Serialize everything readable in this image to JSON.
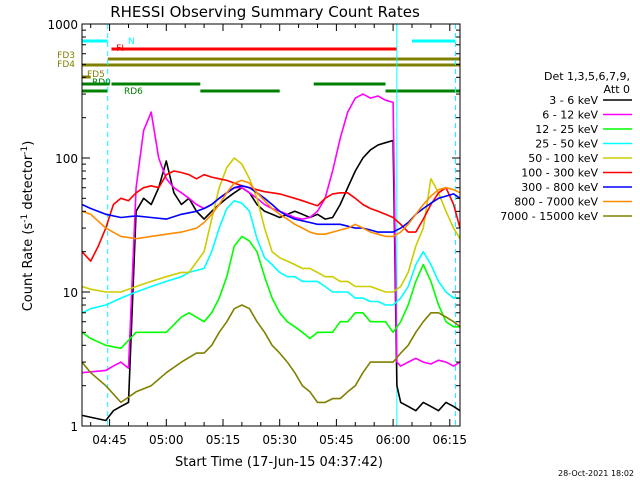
{
  "chart_data": {
    "type": "line",
    "title": "RHESSI Observing Summary Count Rates",
    "xlabel": "Start Time (17-Jun-15 04:37:42)",
    "ylabel": "Count Rate (s⁻¹ detector⁻¹)",
    "ylabel_main": "Count Rate (s",
    "ylabel_sup1": "-1",
    "ylabel_mid": " detector",
    "ylabel_sup2": "-1",
    "ylabel_end": ")",
    "footer": "28-Oct-2021 18:02",
    "y_scale": "log",
    "ylim": [
      1,
      1000
    ],
    "xlim_minutes": [
      37.7,
      137.7
    ],
    "x_ticks": [
      {
        "label": "04:45",
        "t": 45
      },
      {
        "label": "05:00",
        "t": 60
      },
      {
        "label": "05:15",
        "t": 75
      },
      {
        "label": "05:30",
        "t": 90
      },
      {
        "label": "05:45",
        "t": 105
      },
      {
        "label": "06:00",
        "t": 120
      },
      {
        "label": "06:15",
        "t": 135
      }
    ],
    "y_ticks": [
      {
        "label": "1",
        "v": 1
      },
      {
        "label": "10",
        "v": 10
      },
      {
        "label": "100",
        "v": 100
      },
      {
        "label": "1000",
        "v": 1000
      }
    ],
    "legend": {
      "header_line1": "Det 1,3,5,6,7,9,",
      "header_line2": "Att 0",
      "placement": "right"
    },
    "series": [
      {
        "name": "3 - 6 keV",
        "color": "#000000",
        "x": [
          37.7,
          44,
          46,
          48,
          50,
          52,
          54,
          56,
          58,
          60,
          62,
          64,
          66,
          68,
          70,
          72,
          74,
          76,
          78,
          80,
          82,
          84,
          86,
          88,
          90,
          92,
          94,
          96,
          98,
          100,
          102,
          104,
          106,
          108,
          110,
          112,
          114,
          116,
          118,
          120,
          121,
          122,
          124,
          126,
          128,
          130,
          132,
          134,
          136,
          137.7
        ],
        "y": [
          1.2,
          1.1,
          1.3,
          1.4,
          1.5,
          40,
          50,
          45,
          60,
          95,
          55,
          45,
          50,
          40,
          35,
          40,
          45,
          50,
          55,
          60,
          55,
          45,
          40,
          38,
          36,
          38,
          40,
          38,
          36,
          38,
          35,
          36,
          45,
          60,
          80,
          100,
          115,
          125,
          130,
          135,
          2,
          1.5,
          1.4,
          1.3,
          1.5,
          1.4,
          1.3,
          1.5,
          1.4,
          1.3
        ]
      },
      {
        "name": "6 - 12 keV",
        "color": "#ff00ff",
        "x": [
          37.7,
          44,
          46,
          48,
          50,
          52,
          54,
          56,
          58,
          60,
          62,
          64,
          66,
          68,
          70,
          72,
          74,
          76,
          78,
          80,
          82,
          84,
          86,
          88,
          90,
          92,
          94,
          96,
          98,
          100,
          102,
          104,
          106,
          108,
          110,
          112,
          114,
          116,
          118,
          120,
          121,
          122,
          124,
          126,
          128,
          130,
          132,
          134,
          136,
          137.7
        ],
        "y": [
          2.5,
          2.6,
          2.8,
          3,
          2.7,
          60,
          160,
          220,
          100,
          70,
          60,
          55,
          50,
          45,
          42,
          45,
          50,
          55,
          60,
          60,
          55,
          50,
          45,
          42,
          40,
          38,
          36,
          35,
          36,
          40,
          50,
          80,
          140,
          220,
          280,
          300,
          280,
          290,
          270,
          260,
          3,
          2.8,
          3,
          3.2,
          3,
          2.9,
          3.1,
          3,
          2.8,
          3
        ]
      },
      {
        "name": "12 - 25 keV",
        "color": "#00ff00",
        "x": [
          37.7,
          40,
          44,
          48,
          52,
          56,
          60,
          64,
          66,
          70,
          72,
          74,
          76,
          78,
          80,
          82,
          84,
          86,
          88,
          90,
          92,
          94,
          96,
          98,
          100,
          102,
          104,
          106,
          108,
          110,
          112,
          114,
          116,
          118,
          120,
          122,
          124,
          126,
          128,
          130,
          132,
          134,
          136,
          137.7
        ],
        "y": [
          5,
          4.5,
          4,
          3.8,
          5,
          5,
          5,
          6.5,
          7,
          6,
          7,
          9,
          13,
          22,
          26,
          24,
          20,
          13,
          9,
          7,
          6,
          5.5,
          5,
          4.5,
          5,
          5,
          5,
          6,
          6,
          7,
          7,
          6,
          6,
          6,
          5,
          6,
          8,
          12,
          16,
          12,
          8,
          6,
          5.5,
          5.5
        ]
      },
      {
        "name": "25 - 50 keV",
        "color": "#00ffff",
        "x": [
          37.7,
          40,
          44,
          48,
          52,
          56,
          60,
          64,
          66,
          70,
          72,
          74,
          76,
          78,
          80,
          82,
          84,
          86,
          88,
          90,
          92,
          94,
          96,
          98,
          100,
          102,
          104,
          106,
          108,
          110,
          112,
          114,
          116,
          118,
          120,
          122,
          124,
          126,
          128,
          130,
          132,
          134,
          136,
          137.7
        ],
        "y": [
          7,
          7.5,
          8,
          9,
          10,
          11,
          12,
          13,
          14,
          15,
          20,
          30,
          42,
          48,
          46,
          40,
          25,
          18,
          16,
          14,
          13,
          13,
          12,
          12,
          12,
          11,
          10,
          10,
          10,
          9,
          9,
          8.5,
          8.5,
          8,
          8,
          9,
          11,
          16,
          20,
          16,
          12,
          10,
          9,
          9
        ]
      },
      {
        "name": "50 - 100 keV",
        "color": "#cccc00",
        "x": [
          37.7,
          40,
          44,
          48,
          52,
          56,
          60,
          64,
          66,
          70,
          72,
          74,
          76,
          78,
          80,
          82,
          84,
          86,
          88,
          90,
          92,
          94,
          96,
          98,
          100,
          102,
          104,
          106,
          108,
          110,
          112,
          114,
          116,
          118,
          120,
          122,
          124,
          126,
          128,
          130,
          132,
          134,
          136,
          137.7
        ],
        "y": [
          11,
          10.5,
          10,
          10,
          11,
          12,
          13,
          14,
          14,
          20,
          35,
          60,
          85,
          100,
          90,
          70,
          50,
          30,
          20,
          18,
          17,
          16,
          15,
          15,
          14,
          13,
          13,
          12,
          12,
          11,
          11,
          11,
          10.5,
          10,
          10,
          11,
          14,
          22,
          30,
          70,
          55,
          40,
          30,
          25
        ]
      },
      {
        "name": "100 - 300 keV",
        "color": "#ff0000",
        "x": [
          37.7,
          40,
          42,
          44,
          46,
          48,
          50,
          52,
          54,
          56,
          58,
          60,
          62,
          64,
          66,
          68,
          70,
          72,
          74,
          76,
          78,
          80,
          82,
          84,
          86,
          88,
          90,
          92,
          94,
          96,
          98,
          100,
          102,
          104,
          106,
          108,
          110,
          112,
          114,
          116,
          118,
          120,
          122,
          124,
          126,
          128,
          130,
          132,
          134,
          136,
          137.7
        ],
        "y": [
          20,
          17,
          22,
          30,
          45,
          50,
          48,
          55,
          60,
          62,
          60,
          75,
          80,
          78,
          75,
          70,
          75,
          72,
          70,
          68,
          65,
          62,
          60,
          58,
          56,
          55,
          54,
          52,
          50,
          48,
          46,
          44,
          50,
          54,
          55,
          55,
          50,
          45,
          42,
          40,
          38,
          36,
          32,
          28,
          28,
          35,
          45,
          55,
          60,
          45,
          30
        ]
      },
      {
        "name": "300 - 800 keV",
        "color": "#0000ff",
        "x": [
          37.7,
          40,
          44,
          48,
          52,
          56,
          60,
          64,
          68,
          70,
          72,
          74,
          76,
          78,
          80,
          82,
          84,
          86,
          88,
          90,
          92,
          94,
          96,
          98,
          100,
          102,
          104,
          106,
          108,
          110,
          112,
          114,
          116,
          118,
          120,
          122,
          124,
          126,
          128,
          130,
          132,
          134,
          136,
          137.7
        ],
        "y": [
          45,
          42,
          38,
          36,
          37,
          36,
          35,
          38,
          40,
          42,
          45,
          50,
          55,
          60,
          62,
          60,
          55,
          50,
          45,
          40,
          37,
          35,
          34,
          33,
          32,
          32,
          32,
          32,
          31,
          30,
          30,
          29,
          28,
          28,
          28,
          30,
          33,
          38,
          42,
          46,
          50,
          52,
          54,
          50
        ]
      },
      {
        "name": "800 - 7000 keV",
        "color": "#ff8c00",
        "x": [
          37.7,
          40,
          44,
          48,
          52,
          56,
          60,
          64,
          68,
          70,
          72,
          74,
          76,
          78,
          80,
          82,
          84,
          86,
          88,
          90,
          92,
          94,
          96,
          98,
          100,
          102,
          104,
          106,
          108,
          110,
          112,
          114,
          116,
          118,
          120,
          122,
          124,
          126,
          128,
          130,
          132,
          134,
          136,
          137.7
        ],
        "y": [
          40,
          38,
          30,
          26,
          25,
          26,
          27,
          28,
          30,
          33,
          38,
          45,
          55,
          65,
          68,
          65,
          55,
          48,
          42,
          38,
          35,
          32,
          30,
          28,
          27,
          27,
          28,
          29,
          30,
          32,
          30,
          28,
          27,
          26,
          26,
          28,
          32,
          38,
          45,
          52,
          58,
          60,
          58,
          55
        ]
      },
      {
        "name": "7000 - 15000 keV",
        "color": "#808000",
        "x": [
          37.7,
          40,
          44,
          48,
          52,
          56,
          60,
          64,
          68,
          70,
          72,
          74,
          76,
          78,
          80,
          82,
          84,
          86,
          88,
          90,
          92,
          94,
          96,
          98,
          100,
          102,
          104,
          106,
          108,
          110,
          112,
          114,
          116,
          118,
          120,
          122,
          124,
          126,
          128,
          130,
          132,
          134,
          136,
          137.7
        ],
        "y": [
          3,
          2.5,
          2,
          1.5,
          1.8,
          2,
          2.5,
          3,
          3.5,
          3.5,
          4,
          5,
          6,
          7.5,
          8,
          7.5,
          6,
          5,
          4,
          3.5,
          3,
          2.5,
          2,
          1.8,
          1.5,
          1.5,
          1.6,
          1.6,
          1.8,
          2,
          2.5,
          3,
          3,
          3,
          3,
          3.5,
          4,
          5,
          6,
          7,
          7,
          6.5,
          6,
          5.5
        ]
      }
    ],
    "flags": [
      {
        "name": "N",
        "color": "#00ffff",
        "bars": [
          [
            37.7,
            44.5
          ],
          [
            125,
            136.5
          ]
        ]
      },
      {
        "name": "FI",
        "color": "#ff0000",
        "bars": [
          [
            45.5,
            121
          ]
        ]
      },
      {
        "name": "FD3",
        "color": "#808000",
        "bars": [
          [
            44.5,
            137.7
          ]
        ]
      },
      {
        "name": "FD4",
        "color": "#808000",
        "bars": [
          [
            37.7,
            137.7
          ]
        ]
      },
      {
        "name": "FD5",
        "color": "#808000",
        "bars": [
          [
            37.7,
            40
          ]
        ]
      },
      {
        "name": "RD0",
        "color": "#008000",
        "bars": [
          [
            37.7,
            45
          ],
          [
            45.5,
            69
          ],
          [
            99,
            118
          ]
        ]
      },
      {
        "name": "RD6",
        "color": "#008000",
        "bars": [
          [
            37.7,
            44.5
          ],
          [
            69,
            90
          ],
          [
            118,
            137.7
          ]
        ]
      }
    ],
    "vlines": [
      {
        "t": 44.5,
        "color": "#00ffff",
        "style": "dashed"
      },
      {
        "t": 121,
        "color": "#00ffff",
        "style": "solid"
      },
      {
        "t": 136.5,
        "color": "#00ffff",
        "style": "dashed"
      }
    ]
  }
}
